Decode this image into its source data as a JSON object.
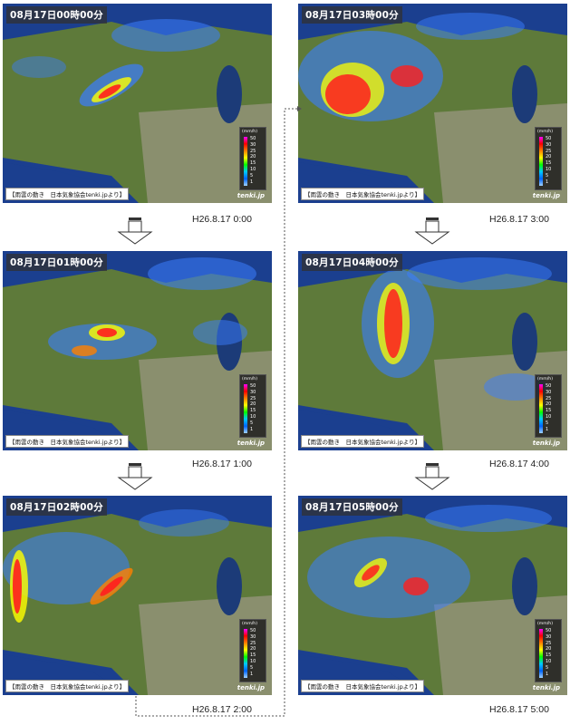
{
  "panels": [
    {
      "timestamp": "08月17日00時00分",
      "caption": "H26.8.17 0:00"
    },
    {
      "timestamp": "08月17日01時00分",
      "caption": "H26.8.17 1:00"
    },
    {
      "timestamp": "08月17日02時00分",
      "caption": "H26.8.17 2:00"
    },
    {
      "timestamp": "08月17日03時00分",
      "caption": "H26.8.17 3:00"
    },
    {
      "timestamp": "08月17日04時00分",
      "caption": "H26.8.17 4:00"
    },
    {
      "timestamp": "08月17日05時00分",
      "caption": "H26.8.17 5:00"
    }
  ],
  "source_label": "【雨雲の動き　日本気象協会tenki.jpより】",
  "logo_text": "tenki.jp",
  "legend": {
    "unit": "(mm/h)",
    "levels": [
      "50",
      "30",
      "25",
      "20",
      "15",
      "10",
      "5",
      "1"
    ],
    "colors": [
      "#ff00ff",
      "#ff0000",
      "#ff8000",
      "#ffff00",
      "#00ff00",
      "#00c8ff",
      "#0064ff",
      "#a0d2ff"
    ]
  },
  "colors": {
    "sea": "#1b3f8f",
    "land": "#5e7a3a",
    "lake": "#1c3b78",
    "rain_light": "#3a7dff",
    "rain_heavy": "#ff1e1e"
  }
}
